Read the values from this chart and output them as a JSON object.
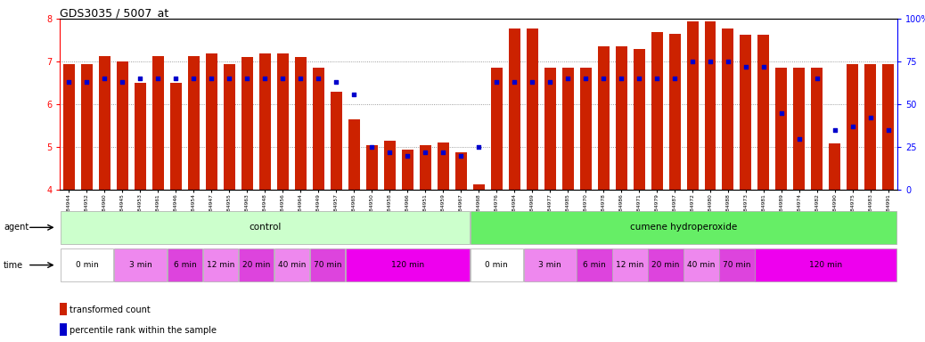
{
  "title": "GDS3035 / 5007_at",
  "ylim_left": [
    4,
    8
  ],
  "ylim_right": [
    0,
    100
  ],
  "yticks_left": [
    4,
    5,
    6,
    7,
    8
  ],
  "yticks_right": [
    0,
    25,
    50,
    75,
    100
  ],
  "bar_color": "#cc2200",
  "dot_color": "#0000cc",
  "samples": [
    "GSM184944",
    "GSM184952",
    "GSM184960",
    "GSM184945",
    "GSM184953",
    "GSM184961",
    "GSM184946",
    "GSM184954",
    "GSM184947",
    "GSM184955",
    "GSM184963",
    "GSM184948",
    "GSM184956",
    "GSM184964",
    "GSM184949",
    "GSM184957",
    "GSM184965",
    "GSM184950",
    "GSM184958",
    "GSM184966",
    "GSM184951",
    "GSM184959",
    "GSM184967",
    "GSM184968",
    "GSM184976",
    "GSM184984",
    "GSM184969",
    "GSM184977",
    "GSM184985",
    "GSM184970",
    "GSM184978",
    "GSM184986",
    "GSM184971",
    "GSM184979",
    "GSM184987",
    "GSM184972",
    "GSM184980",
    "GSM184988",
    "GSM184973",
    "GSM184981",
    "GSM184989",
    "GSM184974",
    "GSM184982",
    "GSM184990",
    "GSM184975",
    "GSM184983",
    "GSM184991"
  ],
  "bar_heights": [
    6.95,
    6.95,
    7.12,
    7.0,
    6.5,
    7.12,
    6.5,
    7.12,
    7.2,
    6.95,
    7.1,
    7.2,
    7.2,
    7.1,
    6.85,
    6.3,
    5.65,
    5.05,
    5.15,
    4.95,
    5.05,
    5.1,
    4.88,
    4.12,
    6.85,
    7.78,
    7.78,
    6.85,
    6.85,
    6.85,
    7.35,
    7.35,
    7.3,
    7.7,
    7.65,
    7.95,
    7.95,
    7.78,
    7.62,
    7.62,
    6.85,
    6.85,
    6.85,
    5.08,
    6.95,
    6.95,
    6.95
  ],
  "dot_values_pct": [
    63,
    63,
    65,
    63,
    65,
    65,
    65,
    65,
    65,
    65,
    65,
    65,
    65,
    65,
    65,
    63,
    56,
    25,
    22,
    20,
    22,
    22,
    20,
    25,
    63,
    63,
    63,
    63,
    65,
    65,
    65,
    65,
    65,
    65,
    65,
    75,
    75,
    75,
    72,
    72,
    45,
    30,
    65,
    35,
    37,
    42,
    35
  ],
  "agent_groups": [
    {
      "label": "control",
      "start": 0,
      "end": 23,
      "color": "#ccffcc"
    },
    {
      "label": "cumene hydroperoxide",
      "start": 23,
      "end": 47,
      "color": "#66ee66"
    }
  ],
  "time_groups": [
    {
      "label": "0 min",
      "start": 0,
      "end": 3,
      "color": "#ffffff"
    },
    {
      "label": "3 min",
      "start": 3,
      "end": 6,
      "color": "#ee88ee"
    },
    {
      "label": "6 min",
      "start": 6,
      "end": 8,
      "color": "#dd44dd"
    },
    {
      "label": "12 min",
      "start": 8,
      "end": 10,
      "color": "#ee88ee"
    },
    {
      "label": "20 min",
      "start": 10,
      "end": 12,
      "color": "#dd44dd"
    },
    {
      "label": "40 min",
      "start": 12,
      "end": 14,
      "color": "#ee88ee"
    },
    {
      "label": "70 min",
      "start": 14,
      "end": 16,
      "color": "#dd44dd"
    },
    {
      "label": "120 min",
      "start": 16,
      "end": 23,
      "color": "#ee00ee"
    },
    {
      "label": "0 min",
      "start": 23,
      "end": 26,
      "color": "#ffffff"
    },
    {
      "label": "3 min",
      "start": 26,
      "end": 29,
      "color": "#ee88ee"
    },
    {
      "label": "6 min",
      "start": 29,
      "end": 31,
      "color": "#dd44dd"
    },
    {
      "label": "12 min",
      "start": 31,
      "end": 33,
      "color": "#ee88ee"
    },
    {
      "label": "20 min",
      "start": 33,
      "end": 35,
      "color": "#dd44dd"
    },
    {
      "label": "40 min",
      "start": 35,
      "end": 37,
      "color": "#ee88ee"
    },
    {
      "label": "70 min",
      "start": 37,
      "end": 39,
      "color": "#dd44dd"
    },
    {
      "label": "120 min",
      "start": 39,
      "end": 47,
      "color": "#ee00ee"
    }
  ]
}
